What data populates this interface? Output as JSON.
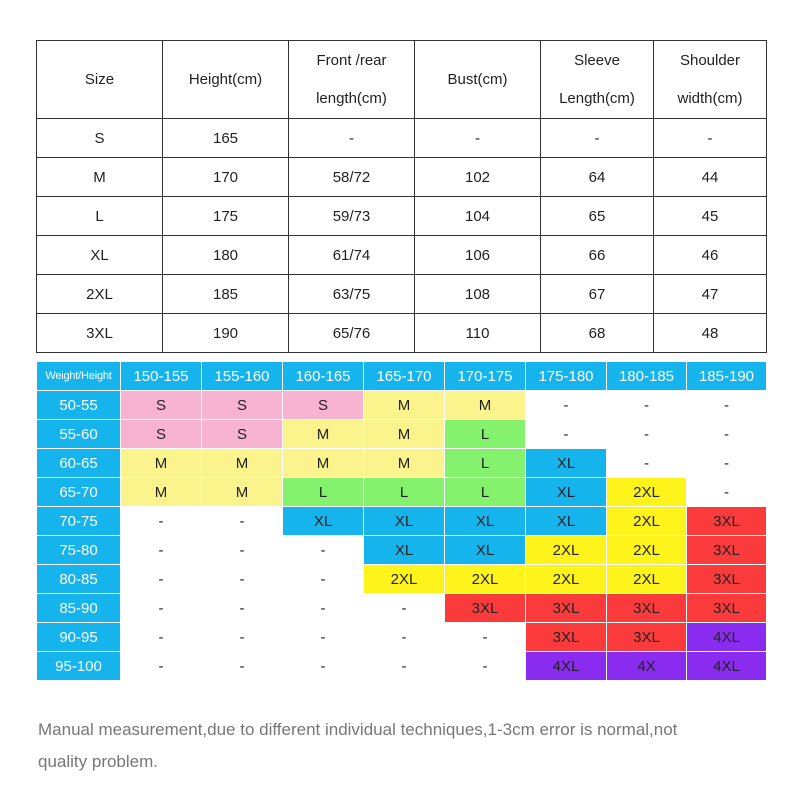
{
  "colors": {
    "header_blue": "#16b4ec",
    "S": "#f7b3cf",
    "M": "#fbf38c",
    "L": "#84f26c",
    "XL": "#16b4ec",
    "2XL": "#fff31c",
    "3XL": "#fb3b3b",
    "4XL": "#8a2cf0",
    "-": "#ffffff"
  },
  "size_table": {
    "headers": [
      [
        "Size"
      ],
      [
        "Height(cm)"
      ],
      [
        "Front /rear",
        "length(cm)"
      ],
      [
        "Bust(cm)"
      ],
      [
        "Sleeve",
        "Length(cm)"
      ],
      [
        "Shoulder",
        "width(cm)"
      ]
    ],
    "rows": [
      [
        "S",
        "165",
        "-",
        "-",
        "-",
        "-"
      ],
      [
        "M",
        "170",
        "58/72",
        "102",
        "64",
        "44"
      ],
      [
        "L",
        "175",
        "59/73",
        "104",
        "65",
        "45"
      ],
      [
        "XL",
        "180",
        "61/74",
        "106",
        "66",
        "46"
      ],
      [
        "2XL",
        "185",
        "63/75",
        "108",
        "67",
        "47"
      ],
      [
        "3XL",
        "190",
        "65/76",
        "110",
        "68",
        "48"
      ]
    ]
  },
  "weight_height_table": {
    "corner_label": "Weight/Height",
    "columns": [
      "150-155",
      "155-160",
      "160-165",
      "165-170",
      "170-175",
      "175-180",
      "180-185",
      "185-190"
    ],
    "rows": [
      {
        "weight": "50-55",
        "cells": [
          "S",
          "S",
          "S",
          "M",
          "M",
          "-",
          "-",
          "-"
        ]
      },
      {
        "weight": "55-60",
        "cells": [
          "S",
          "S",
          "M",
          "M",
          "L",
          "-",
          "-",
          "-"
        ]
      },
      {
        "weight": "60-65",
        "cells": [
          "M",
          "M",
          "M",
          "M",
          "L",
          "XL",
          "-",
          "-"
        ]
      },
      {
        "weight": "65-70",
        "cells": [
          "M",
          "M",
          "L",
          "L",
          "L",
          "XL",
          "2XL",
          "-"
        ]
      },
      {
        "weight": "70-75",
        "cells": [
          "-",
          "-",
          "XL",
          "XL",
          "XL",
          "XL",
          "2XL",
          "3XL"
        ]
      },
      {
        "weight": "75-80",
        "cells": [
          "-",
          "-",
          "-",
          "XL",
          "XL",
          "2XL",
          "2XL",
          "3XL"
        ]
      },
      {
        "weight": "80-85",
        "cells": [
          "-",
          "-",
          "-",
          "2XL",
          "2XL",
          "2XL",
          "2XL",
          "3XL"
        ]
      },
      {
        "weight": "85-90",
        "cells": [
          "-",
          "-",
          "-",
          "-",
          "3XL",
          "3XL",
          "3XL",
          "3XL"
        ]
      },
      {
        "weight": "90-95",
        "cells": [
          "-",
          "-",
          "-",
          "-",
          "-",
          "3XL",
          "3XL",
          "4XL"
        ]
      },
      {
        "weight": "95-100",
        "cells": [
          "-",
          "-",
          "-",
          "-",
          "-",
          "4XL",
          "4X",
          "4XL"
        ]
      }
    ]
  },
  "note": {
    "line1": "Manual measurement,due to different individual techniques,1-3cm error is normal,not",
    "line2": "quality problem."
  }
}
